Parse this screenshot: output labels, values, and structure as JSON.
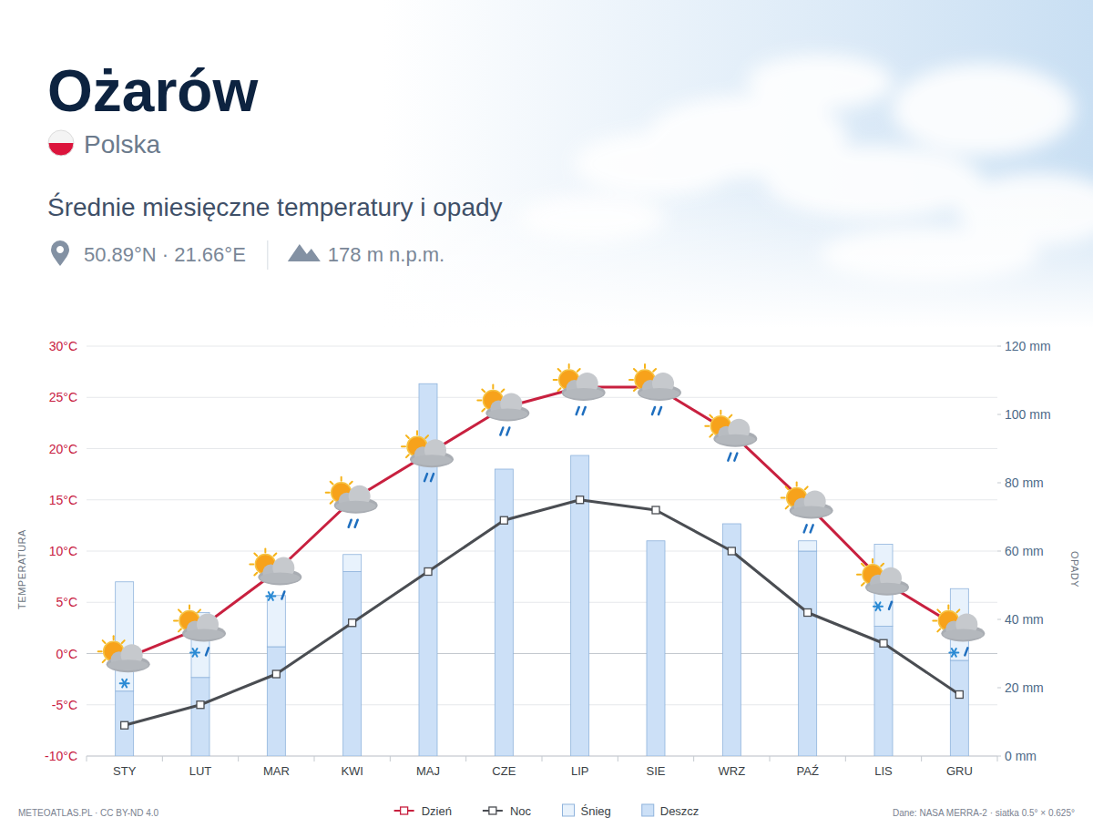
{
  "chart_data": {
    "type": "combo",
    "title": "Ożarów",
    "country": "Polska",
    "subtitle": "Średnie miesięczne temperatury i opady",
    "coordinates": "50.89°N · 21.66°E",
    "elevation": "178 m n.p.m.",
    "y_label": "TEMPERATURA",
    "y2_label": "OPADY",
    "credit": "METEOATLAS.PL · CC BY-ND 4.0",
    "source": "Dane: NASA MERRA-2 · siatka 0.5° × 0.625°",
    "categories": [
      "STY",
      "LUT",
      "MAR",
      "KWI",
      "MAJ",
      "CZE",
      "LIP",
      "SIE",
      "WRZ",
      "PAŹ",
      "LIS",
      "GRU"
    ],
    "series": [
      {
        "name": "Dzień",
        "type": "line",
        "marker": "square",
        "color": "#c8203f",
        "values": [
          -0.5,
          2.5,
          8,
          15,
          19.5,
          24,
          26,
          26,
          21.5,
          14.5,
          7,
          2.5
        ]
      },
      {
        "name": "Noc",
        "type": "line",
        "marker": "square",
        "color": "#4a4d52",
        "values": [
          -7,
          -5,
          -2,
          3,
          8,
          13,
          15,
          14,
          10,
          4,
          1,
          -4
        ]
      },
      {
        "name": "Śnieg",
        "type": "bar",
        "axis": "y2",
        "color": "#e8f2fc",
        "values": [
          32,
          19,
          15,
          5,
          0,
          0,
          0,
          0,
          0,
          3,
          24,
          21
        ]
      },
      {
        "name": "Deszcz",
        "type": "bar",
        "axis": "y2",
        "color": "#cce0f7",
        "values": [
          19,
          23,
          32,
          54,
          109,
          84,
          88,
          63,
          68,
          60,
          38,
          28
        ]
      }
    ],
    "ylim": [
      -10,
      30
    ],
    "yticks": [
      {
        "value": -10,
        "label": "-10°C"
      },
      {
        "value": -5,
        "label": "-5°C"
      },
      {
        "value": 0,
        "label": "0°C"
      },
      {
        "value": 5,
        "label": "5°C"
      },
      {
        "value": 10,
        "label": "10°C"
      },
      {
        "value": 15,
        "label": "15°C"
      },
      {
        "value": 20,
        "label": "20°C"
      },
      {
        "value": 25,
        "label": "25°C"
      },
      {
        "value": 30,
        "label": "30°C"
      }
    ],
    "y2lim": [
      0,
      120
    ],
    "y2ticks": [
      {
        "value": 0,
        "label": "0 mm"
      },
      {
        "value": 20,
        "label": "20 mm"
      },
      {
        "value": 40,
        "label": "40 mm"
      },
      {
        "value": 60,
        "label": "60 mm"
      },
      {
        "value": 80,
        "label": "80 mm"
      },
      {
        "value": 100,
        "label": "100 mm"
      },
      {
        "value": 120,
        "label": "120 mm"
      }
    ],
    "grid": true,
    "stacked": true,
    "legend": "bottom"
  }
}
